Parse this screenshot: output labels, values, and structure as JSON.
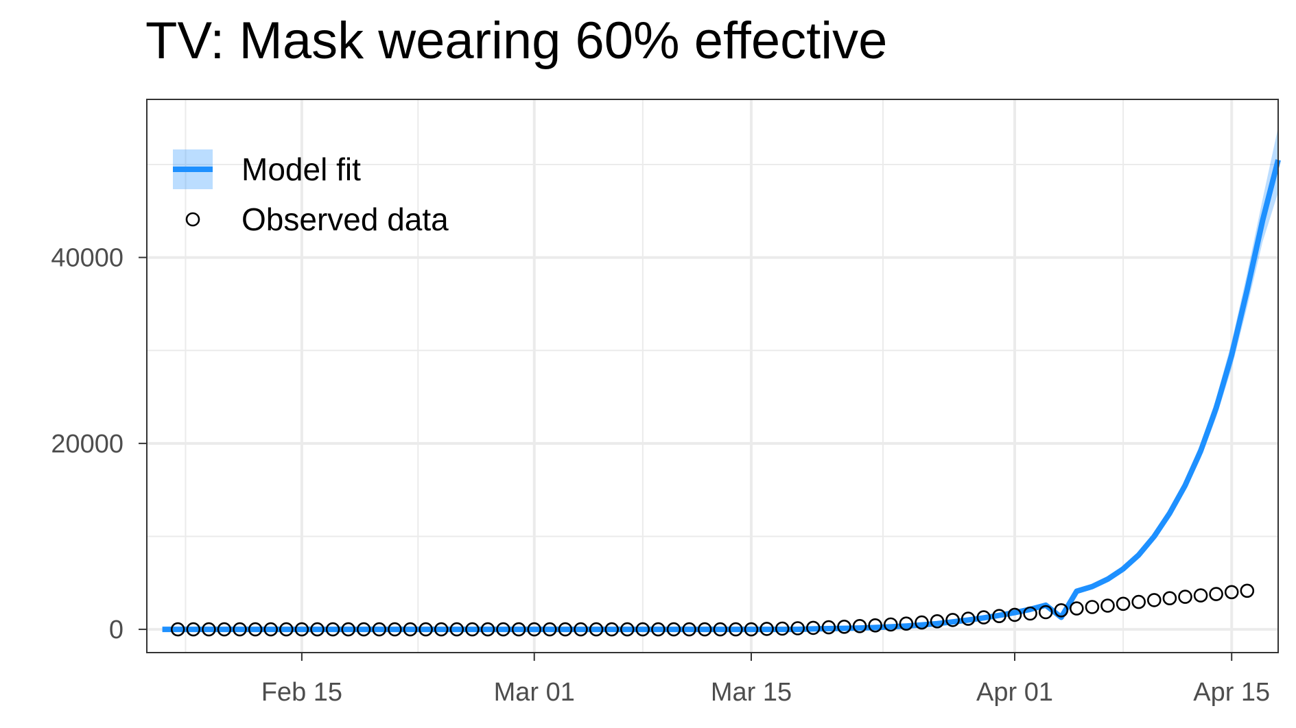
{
  "chart_data": {
    "type": "line",
    "title": "TV: Mask wearing 60% effective",
    "xlabel": "",
    "ylabel": "",
    "x_start": "2020-02-07",
    "x_end": "2020-04-15",
    "xlim": [
      "2020-02-05",
      "2020-04-18"
    ],
    "ylim": [
      -2500,
      57000
    ],
    "x_ticks": [
      {
        "date": "2020-02-15",
        "label": "Feb 15"
      },
      {
        "date": "2020-03-01",
        "label": "Mar 01"
      },
      {
        "date": "2020-03-15",
        "label": "Mar 15"
      },
      {
        "date": "2020-04-01",
        "label": "Apr 01"
      },
      {
        "date": "2020-04-15",
        "label": "Apr 15"
      }
    ],
    "y_ticks": [
      0,
      20000,
      40000
    ],
    "grid": true,
    "legend": {
      "position": "top-left",
      "entries": [
        {
          "label": "Model fit",
          "kind": "line-ribbon",
          "color": "#1E90FF"
        },
        {
          "label": "Observed data",
          "kind": "open-circle",
          "color": "#000000"
        }
      ]
    },
    "series": [
      {
        "name": "Model fit",
        "kind": "line",
        "color": "#1E90FF",
        "x_start": "2020-02-06",
        "values": [
          0,
          0,
          0,
          0,
          0,
          0,
          0,
          0,
          0,
          0,
          0,
          0,
          0,
          0,
          0,
          0,
          0,
          0,
          0,
          0,
          0,
          0,
          0,
          0,
          0,
          0,
          0,
          0,
          0,
          0,
          0,
          0,
          0,
          0,
          0,
          0,
          0,
          0,
          0,
          0,
          0,
          0,
          50,
          80,
          110,
          150,
          200,
          270,
          360,
          480,
          620,
          800,
          1000,
          1240,
          1500,
          1800,
          2150,
          2600,
          1300,
          4100,
          4600,
          5400,
          6500,
          8000,
          10000,
          12500,
          15500,
          19200,
          23800,
          29500,
          36500,
          44000,
          50500
        ],
        "band_upper": [
          0,
          0,
          0,
          0,
          0,
          0,
          0,
          0,
          0,
          0,
          0,
          0,
          0,
          0,
          0,
          0,
          0,
          0,
          0,
          0,
          0,
          0,
          0,
          0,
          0,
          0,
          0,
          0,
          0,
          0,
          0,
          0,
          0,
          0,
          0,
          0,
          0,
          0,
          0,
          0,
          0,
          0,
          60,
          90,
          120,
          160,
          210,
          280,
          370,
          490,
          640,
          820,
          1030,
          1280,
          1550,
          1860,
          2220,
          2680,
          1350,
          4200,
          4720,
          5550,
          6700,
          8250,
          10350,
          12950,
          16100,
          20000,
          24800,
          30900,
          38300,
          46300,
          54000
        ],
        "band_lower": [
          0,
          0,
          0,
          0,
          0,
          0,
          0,
          0,
          0,
          0,
          0,
          0,
          0,
          0,
          0,
          0,
          0,
          0,
          0,
          0,
          0,
          0,
          0,
          0,
          0,
          0,
          0,
          0,
          0,
          0,
          0,
          0,
          0,
          0,
          0,
          0,
          0,
          0,
          0,
          0,
          0,
          0,
          40,
          70,
          100,
          140,
          190,
          260,
          350,
          470,
          600,
          780,
          970,
          1200,
          1450,
          1740,
          2080,
          2520,
          1250,
          4000,
          4480,
          5250,
          6300,
          7750,
          9650,
          12050,
          14900,
          18400,
          22800,
          28100,
          34700,
          41700,
          47000
        ]
      },
      {
        "name": "Observed data",
        "kind": "points",
        "color": "#000000",
        "x_start": "2020-02-07",
        "values": [
          0,
          0,
          0,
          0,
          0,
          0,
          0,
          0,
          0,
          0,
          0,
          0,
          0,
          0,
          0,
          0,
          0,
          0,
          0,
          0,
          0,
          0,
          0,
          0,
          0,
          0,
          0,
          0,
          0,
          0,
          0,
          0,
          0,
          0,
          0,
          0,
          0,
          0,
          50,
          80,
          120,
          160,
          220,
          280,
          350,
          430,
          520,
          620,
          740,
          870,
          1010,
          1140,
          1290,
          1430,
          1560,
          1700,
          1850,
          2050,
          2250,
          2400,
          2550,
          2750,
          2950,
          3150,
          3350,
          3500,
          3650,
          3800,
          4000,
          4150
        ]
      }
    ]
  }
}
